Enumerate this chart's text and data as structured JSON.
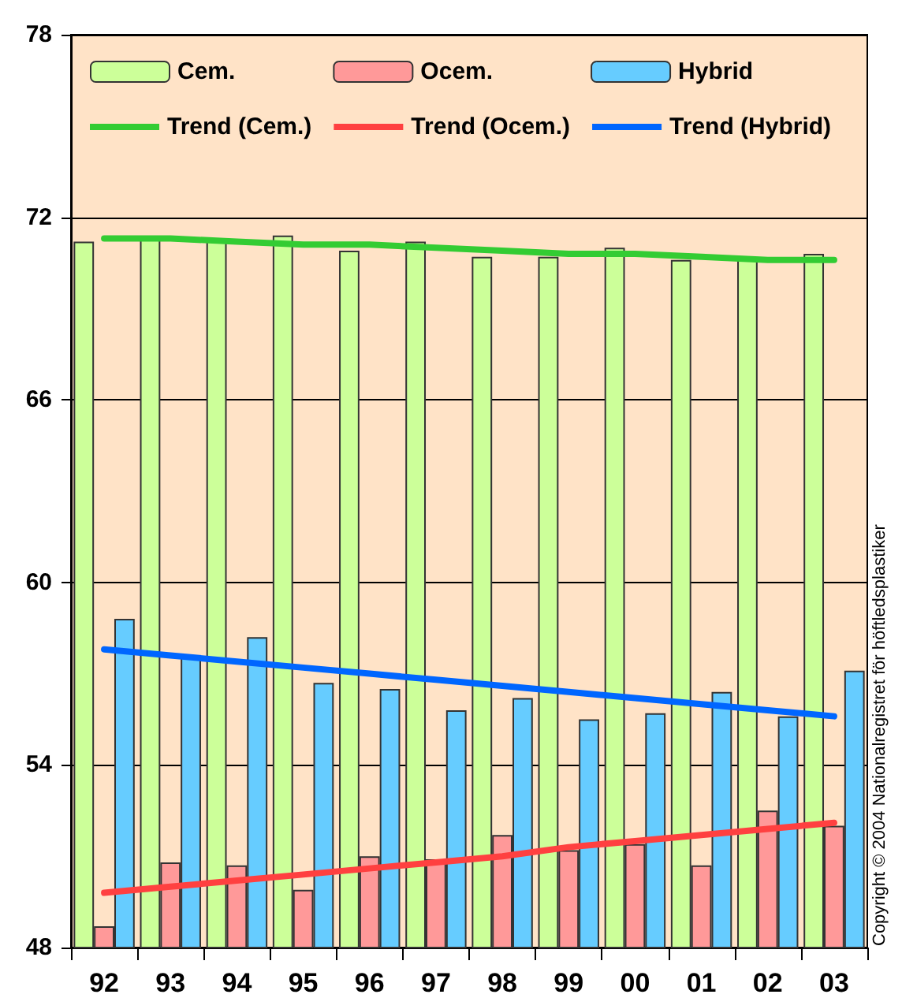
{
  "chart_data": {
    "type": "bar",
    "categories": [
      "92",
      "93",
      "94",
      "95",
      "96",
      "97",
      "98",
      "99",
      "00",
      "01",
      "02",
      "03"
    ],
    "series": [
      {
        "name": "Cem.",
        "color": "#ccff99",
        "values": [
          71.2,
          71.3,
          71.3,
          71.4,
          70.9,
          71.2,
          70.7,
          70.7,
          71.0,
          70.6,
          70.6,
          70.8
        ]
      },
      {
        "name": "Ocem.",
        "color": "#ff9999",
        "values": [
          48.7,
          50.8,
          50.7,
          49.9,
          51.0,
          50.9,
          51.7,
          51.2,
          51.4,
          50.7,
          52.5,
          52.0
        ]
      },
      {
        "name": "Hybrid",
        "color": "#66ccff",
        "values": [
          58.8,
          57.6,
          58.2,
          56.7,
          56.5,
          55.8,
          56.2,
          55.5,
          55.7,
          56.4,
          55.6,
          57.1
        ]
      },
      {
        "name": "Trend (Cem.)",
        "type": "line",
        "color": "#33cc33",
        "values": [
          71.3,
          71.3,
          71.2,
          71.1,
          71.1,
          71.0,
          70.9,
          70.8,
          70.8,
          70.7,
          70.6,
          70.6
        ]
      },
      {
        "name": "Trend (Ocem.)",
        "type": "line",
        "color": "#ff4040",
        "values": [
          49.8,
          50.0,
          50.2,
          50.4,
          50.6,
          50.8,
          51.0,
          51.3,
          51.5,
          51.7,
          51.9,
          52.1
        ]
      },
      {
        "name": "Trend (Hybrid)",
        "type": "line",
        "color": "#0066ff",
        "values": [
          57.8,
          57.6,
          57.4,
          57.2,
          57.0,
          56.8,
          56.6,
          56.4,
          56.2,
          56.0,
          55.8,
          55.6
        ]
      }
    ],
    "ylim": [
      48,
      78
    ],
    "yticks": [
      48,
      54,
      60,
      66,
      72,
      78
    ],
    "grid": "y",
    "legend": "top",
    "marker": "none",
    "line_style": "solid",
    "annotations": [
      "Copyright © 2004 Nationalregistret för höftledsplastiker"
    ]
  }
}
